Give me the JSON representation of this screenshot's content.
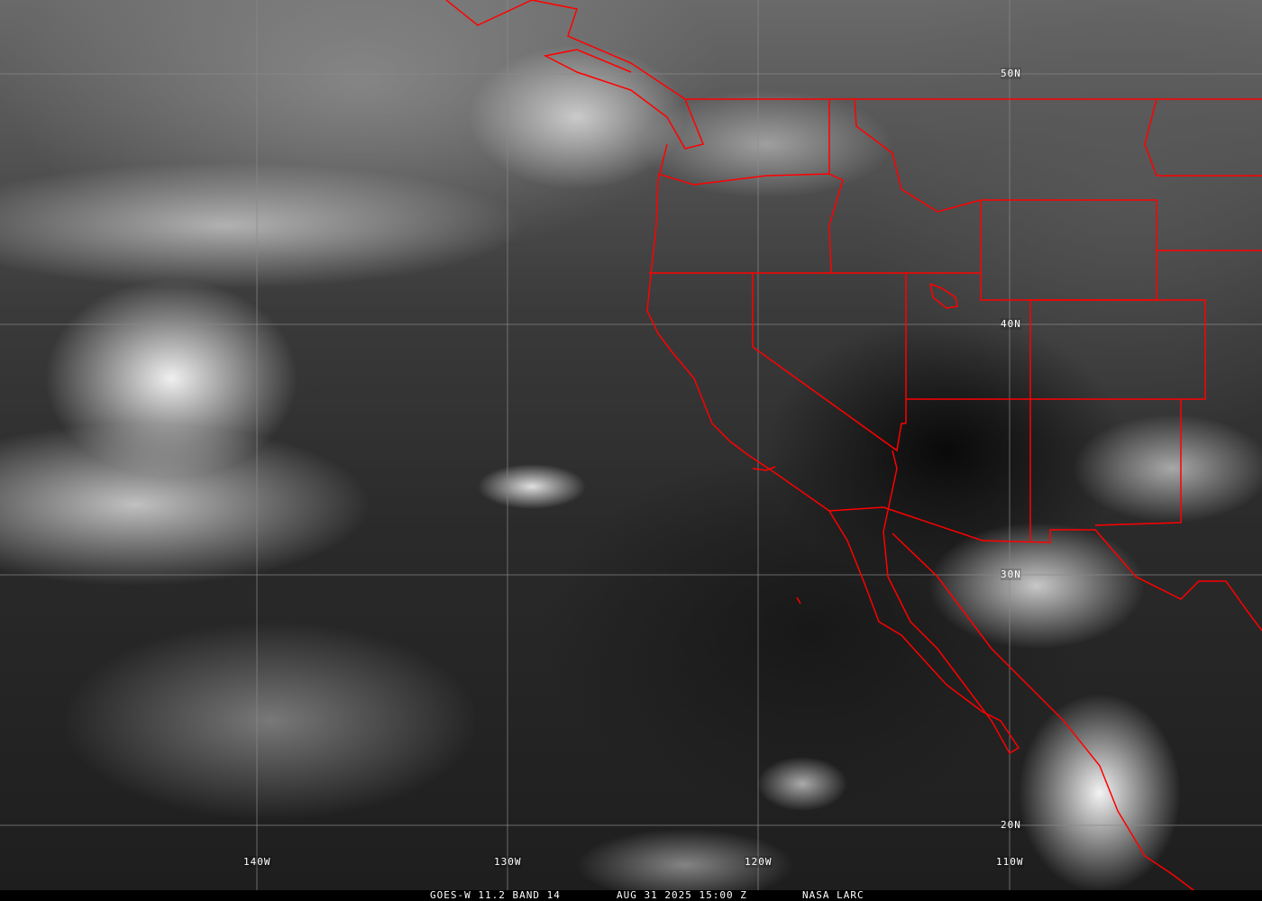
{
  "image": {
    "type": "satellite-infrared",
    "border_color": "#ff0000",
    "grid_color": "#8a8a8a"
  },
  "latitude_labels": [
    "50N",
    "40N",
    "30N",
    "20N"
  ],
  "longitude_labels": [
    "140W",
    "130W",
    "120W",
    "110W"
  ],
  "caption": {
    "satellite": "GOES-W 11.2 BAND 14",
    "datetime": "AUG 31 2025 15:00 Z",
    "source": "NASA LARC"
  }
}
